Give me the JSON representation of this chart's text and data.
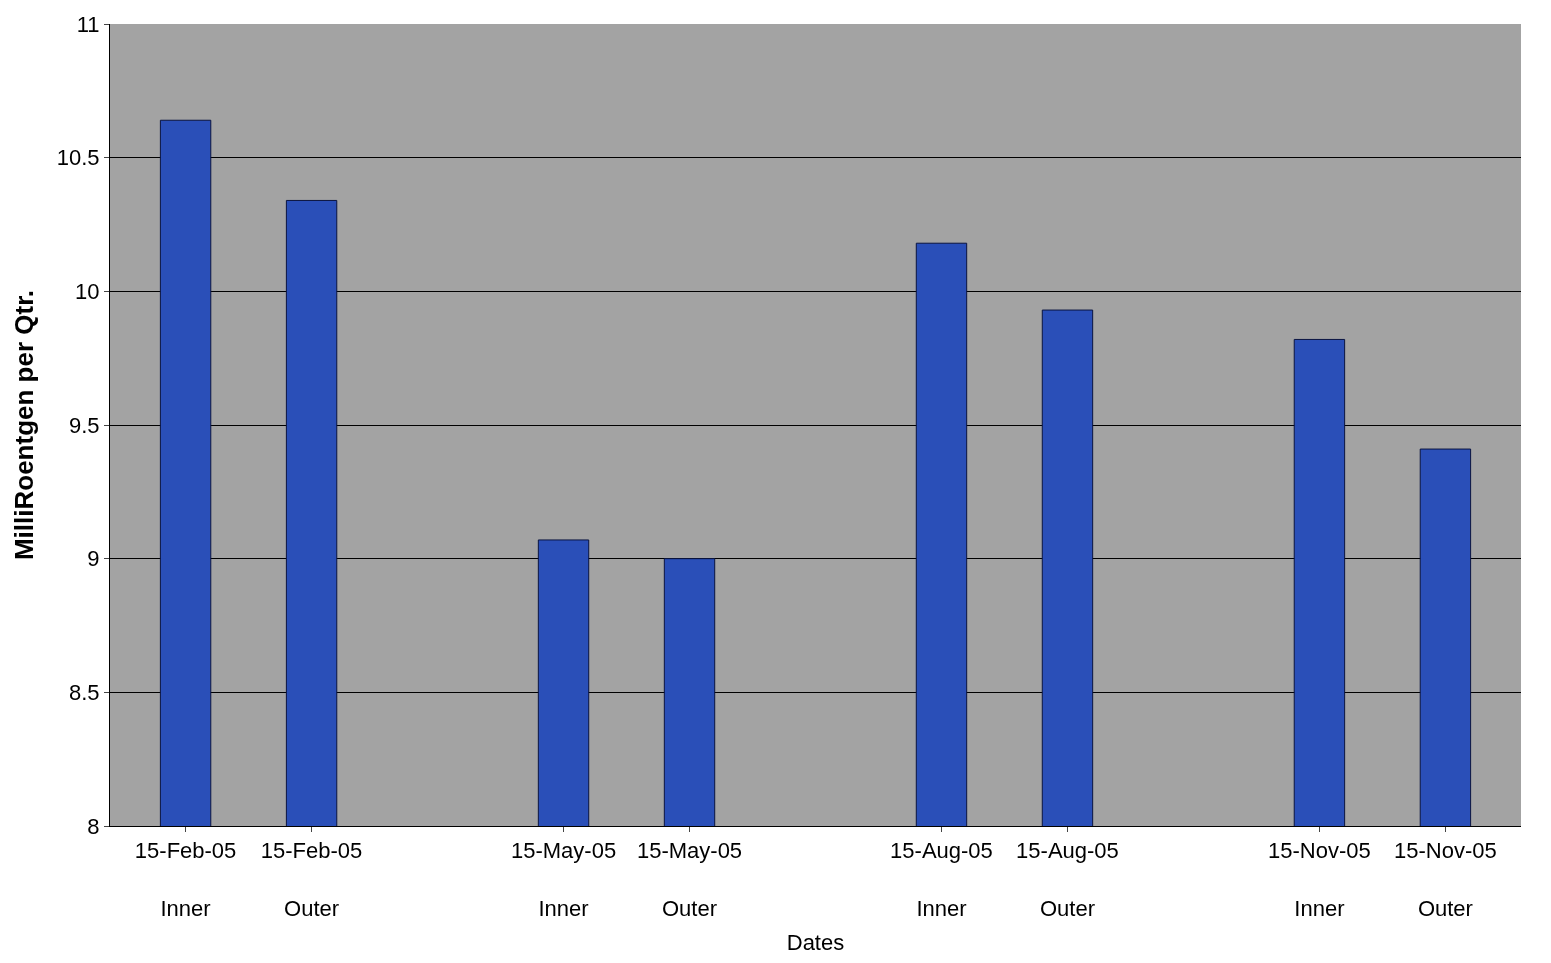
{
  "chart_data": {
    "type": "bar",
    "xlabel": "Dates",
    "ylabel": "MilliRoentgen per Qtr.",
    "categories": [
      "15-Feb-05\nInner",
      "15-Feb-05\nOuter",
      null,
      "15-May-05\nInner",
      "15-May-05\nOuter",
      null,
      "15-Aug-05\nInner",
      "15-Aug-05\nOuter",
      null,
      "15-Nov-05\nInner",
      "15-Nov-05\nOuter"
    ],
    "values": [
      10.64,
      10.34,
      null,
      9.07,
      9.0,
      null,
      10.18,
      9.93,
      null,
      9.82,
      9.41
    ],
    "color": "#2a4fb8",
    "ylim": [
      8,
      11
    ],
    "yticks": [
      8,
      8.5,
      9,
      9.5,
      10,
      10.5,
      11
    ],
    "grid": "y"
  }
}
